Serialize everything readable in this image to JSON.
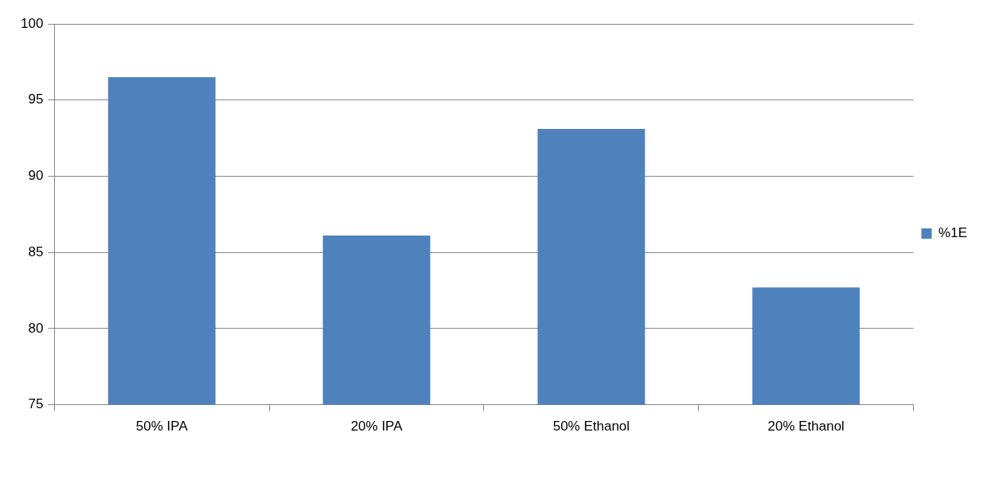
{
  "chart_data": {
    "type": "bar",
    "categories": [
      "50% IPA",
      "20% IPA",
      "50% Ethanol",
      "20% Ethanol"
    ],
    "series": [
      {
        "name": "%1E",
        "color": "#4f81bd",
        "values": [
          96.5,
          86.1,
          93.1,
          82.7
        ]
      }
    ],
    "ylim": [
      75,
      100
    ],
    "yticks": [
      75,
      80,
      85,
      90,
      95,
      100
    ],
    "grid": "y",
    "legend": "right"
  }
}
